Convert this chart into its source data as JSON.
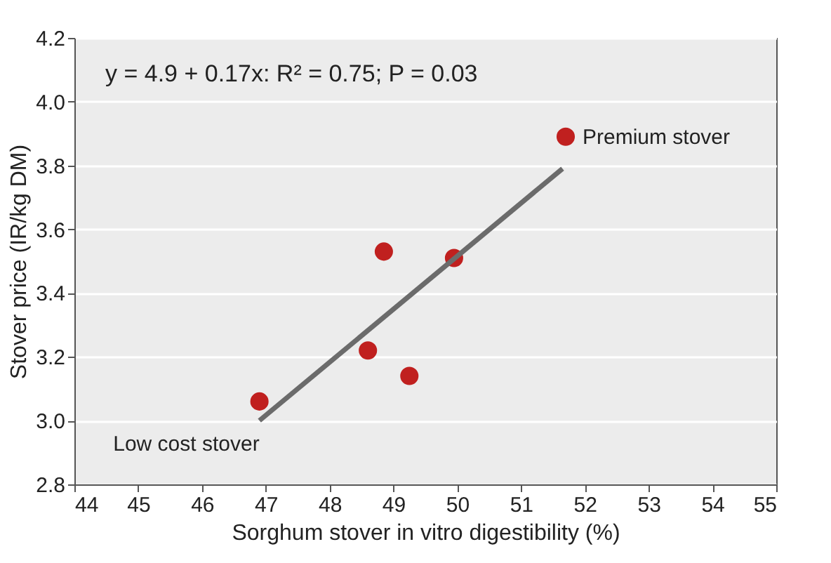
{
  "chart_data": {
    "type": "scatter",
    "xlabel": "Sorghum stover in vitro digestibility (%)",
    "ylabel": "Stover price (IR/kg DM)",
    "xlim": [
      44,
      55
    ],
    "xticks": [
      44,
      45,
      46,
      47,
      48,
      49,
      50,
      51,
      52,
      53,
      54,
      55
    ],
    "ylim": [
      2.8,
      4.2
    ],
    "yticks": [
      2.8,
      {
        "value": 3,
        "label": "3.0"
      },
      3.2,
      3.4,
      3.6,
      3.8,
      {
        "value": 4,
        "label": "4.0"
      },
      4.2
    ],
    "grid": "y",
    "series": [
      {
        "type": "scatter",
        "marker": "circle",
        "color": "#c0201f",
        "x": [
          46.9,
          48.6,
          48.85,
          49.25,
          49.95,
          51.7
        ],
        "values": [
          3.06,
          3.22,
          3.53,
          3.14,
          3.51,
          3.89
        ]
      },
      {
        "type": "line",
        "color": "#6b6b6b",
        "x": [
          46.9,
          51.65
        ],
        "values": [
          3.0,
          3.79
        ]
      }
    ],
    "annotations": [
      "y = 4.9 + 0.17x: R² = 0.75; P = 0.03",
      {
        "text": "Premium stover",
        "x": 51.7,
        "y": 3.89
      },
      {
        "text": "Low cost stover",
        "x": 46.9,
        "y": 3.06
      }
    ]
  }
}
